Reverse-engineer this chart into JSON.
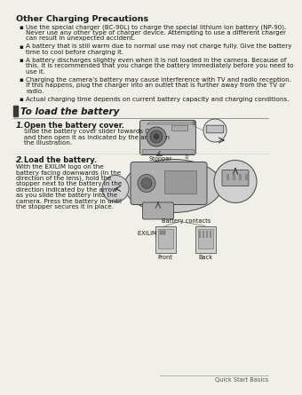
{
  "page_bg": "#f0efe8",
  "text_color": "#1a1a1a",
  "title": "Other Charging Precautions",
  "bullets": [
    "Use the special charger (BC-90L) to charge the special lithium ion battery (NP-90).\nNever use any other type of charger device. Attempting to use a different charger\ncan result in unexpected accident.",
    "A battery that is still warm due to normal use may not charge fully. Give the battery\ntime to cool before charging it.",
    "A battery discharges slightly even when it is not loaded in the camera. Because of\nthis, it is recommended that you charge the battery immediately before you need to\nuse it.",
    "Charging the camera’s battery may cause interference with TV and radio reception.\nIf this happens, plug the charger into an outlet that is further away from the TV or\nradio.",
    "Actual charging time depends on current battery capacity and charging conditions."
  ],
  "section_title": "To load the battery",
  "step1_num": "1.",
  "step1_title": "Open the battery cover.",
  "step1_text": "Slide the battery cover slider towards OPEN\nand then open it as indicated by the arrows in\nthe illustration.",
  "step2_num": "2.",
  "step2_title": "Load the battery.",
  "step2_text": "With the EXILIM logo on the\nbattery facing downwards (in the\ndirection of the lens), hold the\nstopper next to the battery in the\ndirection indicated by the arrow\nas you slide the battery into the\ncamera. Press the battery in until\nthe stopper secures it in place.",
  "stopper_label": "Stopper",
  "battery_contacts_label": "Battery contacts",
  "exilim_logo_label": "EXILIM logo",
  "front_label": "Front",
  "back_label": "Back",
  "footer": "Quick Start Basics",
  "title_fontsize": 6.8,
  "body_fontsize": 5.1,
  "step_title_fontsize": 6.0,
  "section_fontsize": 7.5,
  "footer_fontsize": 4.8,
  "label_fontsize": 4.8
}
